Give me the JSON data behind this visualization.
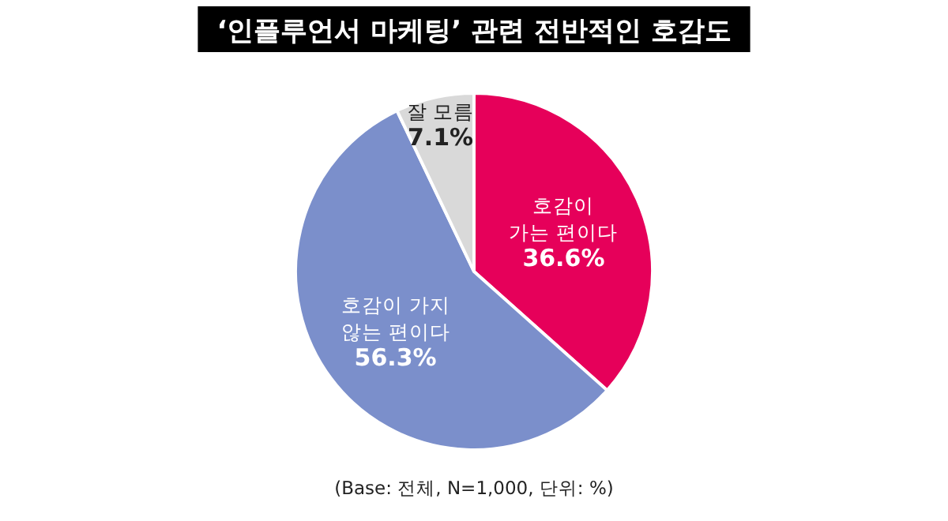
{
  "chart_data": {
    "type": "pie",
    "title": "‘인플루언서 마케팅’ 관련 전반적인 호감도",
    "categories": [
      "호감이\n가는 편이다",
      "호감이 가지\n않는 편이다",
      "잘 모름"
    ],
    "values": [
      36.6,
      56.3,
      7.1
    ],
    "colors": [
      "#e6005a",
      "#7b8fcb",
      "#d9d9d9"
    ],
    "value_labels": [
      "36.6%",
      "56.3%",
      "7.1%"
    ],
    "annotations": [
      "(Base: 전체, N=1,000, 단위: %)"
    ],
    "legend": false
  }
}
